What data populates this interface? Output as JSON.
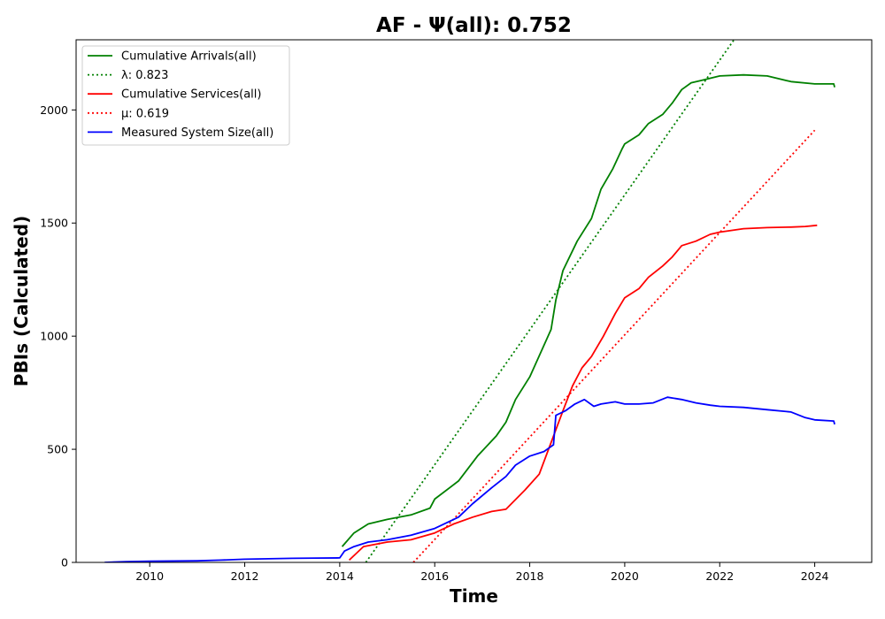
{
  "chart_data": {
    "type": "line",
    "title": "AF -  Ψ(all): 0.752",
    "xlabel": "Time",
    "ylabel": "PBIs (Calculated)",
    "xlim": [
      2008.45,
      2025.2
    ],
    "ylim": [
      0,
      2310
    ],
    "xticks": [
      2010,
      2012,
      2014,
      2016,
      2018,
      2020,
      2022,
      2024
    ],
    "xtick_labels": [
      "2010",
      "2012",
      "2014",
      "2016",
      "2018",
      "2020",
      "2022",
      "2024"
    ],
    "yticks": [
      0,
      500,
      1000,
      1500,
      2000
    ],
    "ytick_labels": [
      "0",
      "500",
      "1000",
      "1500",
      "2000"
    ],
    "grid": false,
    "legend_position": "top-left",
    "series": [
      {
        "name": "Cumulative Arrivals(all)",
        "color": "#008000",
        "style": "solid",
        "x": [
          2014.05,
          2014.3,
          2014.6,
          2015.0,
          2015.5,
          2015.9,
          2016.0,
          2016.5,
          2016.9,
          2017.3,
          2017.5,
          2017.7,
          2018.0,
          2018.3,
          2018.45,
          2018.55,
          2018.7,
          2019.0,
          2019.3,
          2019.5,
          2019.75,
          2019.95,
          2020.0,
          2020.3,
          2020.5,
          2020.8,
          2021.0,
          2021.2,
          2021.4,
          2021.6,
          2021.8,
          2022.0,
          2022.5,
          2023.0,
          2023.5,
          2024.0,
          2024.4,
          2024.42
        ],
        "y": [
          70,
          130,
          170,
          190,
          210,
          240,
          280,
          360,
          470,
          560,
          620,
          720,
          820,
          960,
          1030,
          1160,
          1290,
          1420,
          1520,
          1650,
          1740,
          1830,
          1850,
          1890,
          1940,
          1980,
          2030,
          2090,
          2120,
          2130,
          2140,
          2150,
          2155,
          2150,
          2125,
          2115,
          2115,
          2100
        ]
      },
      {
        "name": "λ: 0.823",
        "color": "#008000",
        "style": "dotted",
        "x": [
          2014.55,
          2022.3
        ],
        "y": [
          0,
          2310
        ]
      },
      {
        "name": "Cumulative Services(all)",
        "color": "#ff0000",
        "style": "solid",
        "x": [
          2014.2,
          2014.5,
          2015.0,
          2015.5,
          2016.0,
          2016.4,
          2016.8,
          2017.2,
          2017.5,
          2017.9,
          2018.2,
          2018.45,
          2018.7,
          2018.9,
          2019.1,
          2019.3,
          2019.55,
          2019.8,
          2020.0,
          2020.3,
          2020.5,
          2020.8,
          2021.0,
          2021.2,
          2021.5,
          2021.8,
          2022.0,
          2022.5,
          2023.0,
          2023.5,
          2023.8,
          2024.05
        ],
        "y": [
          10,
          70,
          90,
          100,
          130,
          170,
          200,
          225,
          235,
          320,
          390,
          530,
          670,
          780,
          860,
          910,
          1000,
          1100,
          1170,
          1210,
          1260,
          1310,
          1350,
          1400,
          1420,
          1450,
          1460,
          1475,
          1480,
          1482,
          1485,
          1490
        ]
      },
      {
        "name": "μ: 0.619",
        "color": "#ff0000",
        "style": "dotted",
        "x": [
          2015.55,
          2024.0
        ],
        "y": [
          0,
          1910
        ]
      },
      {
        "name": "Measured System Size(all)",
        "color": "#0000ff",
        "style": "solid",
        "x": [
          2009.05,
          2009.5,
          2010.0,
          2011.0,
          2011.5,
          2012.0,
          2012.5,
          2013.0,
          2013.5,
          2014.0,
          2014.1,
          2014.3,
          2014.6,
          2015.0,
          2015.5,
          2016.0,
          2016.5,
          2016.8,
          2017.2,
          2017.5,
          2017.7,
          2018.0,
          2018.3,
          2018.5,
          2018.55,
          2018.75,
          2018.95,
          2019.15,
          2019.35,
          2019.5,
          2019.8,
          2020.0,
          2020.3,
          2020.6,
          2020.9,
          2021.2,
          2021.5,
          2021.8,
          2022.0,
          2022.5,
          2023.0,
          2023.5,
          2023.8,
          2024.0,
          2024.4,
          2024.42
        ],
        "y": [
          0,
          3,
          5,
          7,
          10,
          14,
          16,
          18,
          19,
          20,
          50,
          70,
          90,
          100,
          120,
          150,
          200,
          260,
          330,
          380,
          430,
          470,
          490,
          520,
          650,
          670,
          700,
          720,
          690,
          700,
          710,
          700,
          700,
          705,
          730,
          720,
          705,
          695,
          690,
          685,
          675,
          665,
          640,
          630,
          625,
          610
        ]
      }
    ]
  }
}
